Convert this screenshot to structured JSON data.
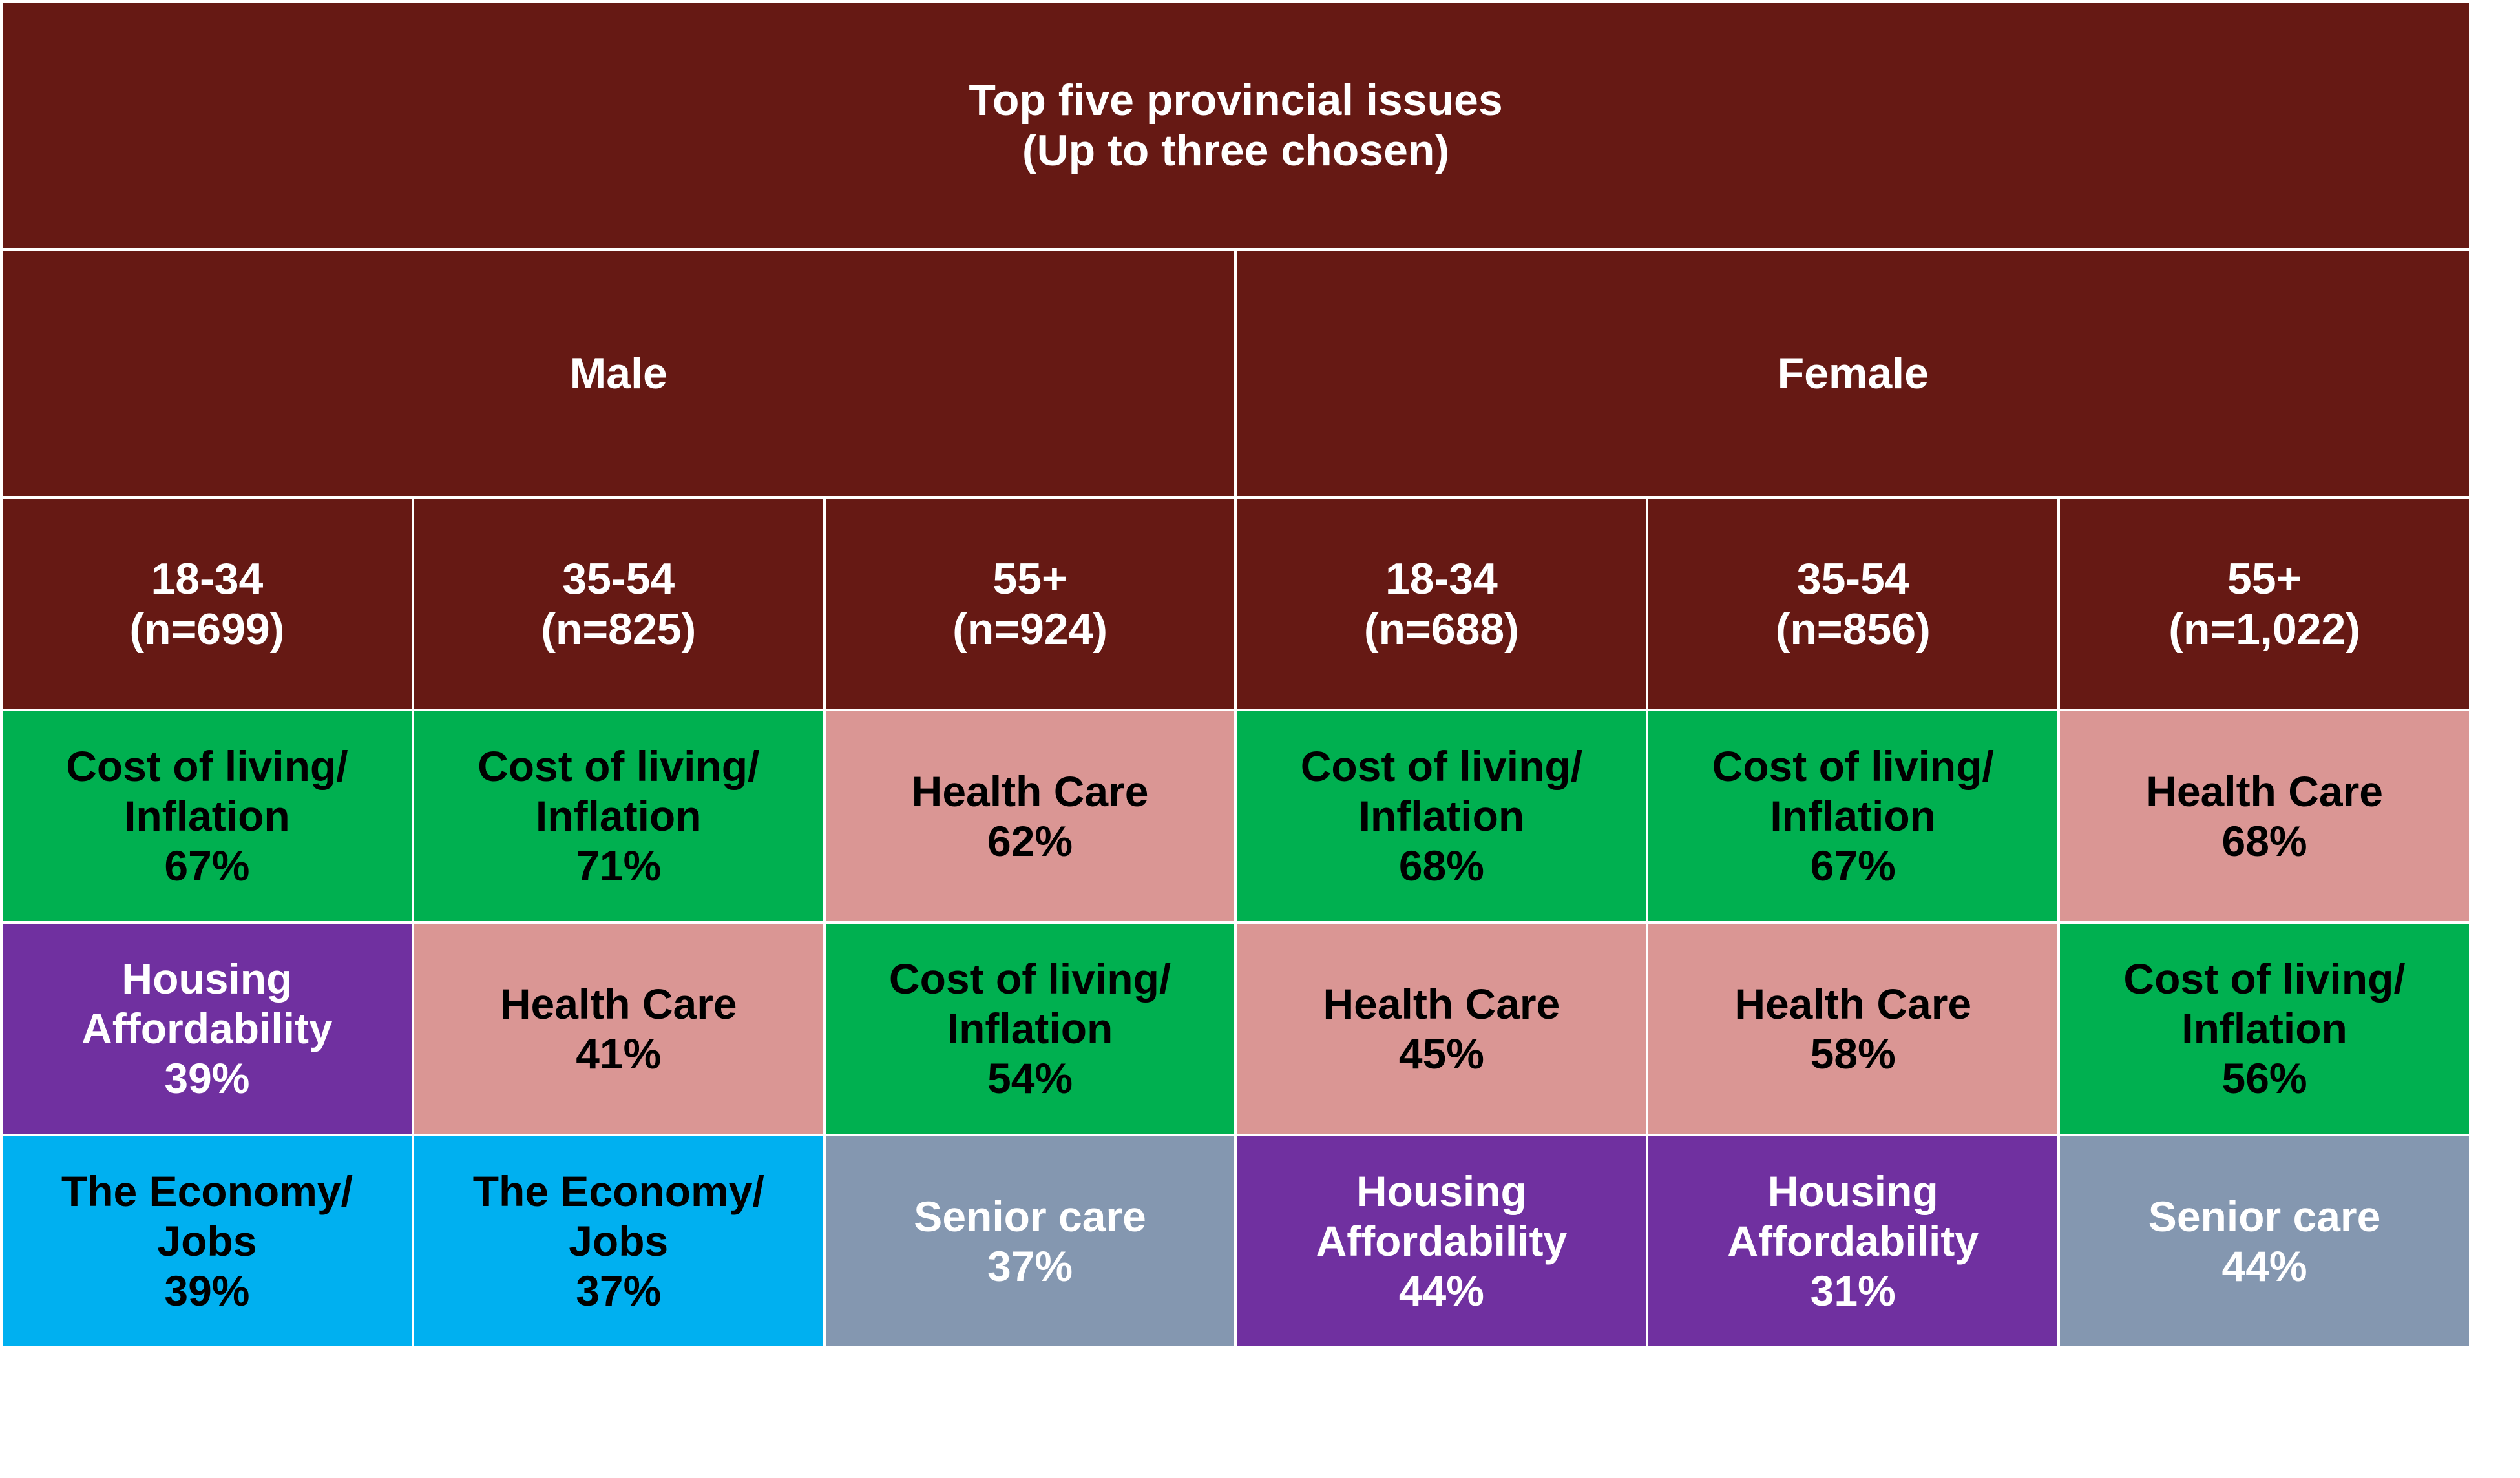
{
  "chart_data": {
    "type": "table",
    "title": "Top five provincial issues",
    "subtitle": "(Up to three chosen)",
    "genders": [
      "Male",
      "Female"
    ],
    "groups": [
      {
        "gender": "Male",
        "age": "18-34",
        "n": "(n=699)"
      },
      {
        "gender": "Male",
        "age": "35-54",
        "n": "(n=825)"
      },
      {
        "gender": "Male",
        "age": "55+",
        "n": "(n=924)"
      },
      {
        "gender": "Female",
        "age": "18-34",
        "n": "(n=688)"
      },
      {
        "gender": "Female",
        "age": "35-54",
        "n": "(n=856)"
      },
      {
        "gender": "Female",
        "age": "55+",
        "n": "(n=1,022)"
      }
    ],
    "issue_colors": {
      "cost": {
        "bg": "#00B050",
        "fg": "#000000"
      },
      "health": {
        "bg": "#DA9694",
        "fg": "#000000"
      },
      "housing": {
        "bg": "#7030A0",
        "fg": "#ffffff"
      },
      "economy": {
        "bg": "#00B0F0",
        "fg": "#000000"
      },
      "senior": {
        "bg": "#8497B0",
        "fg": "#ffffff"
      }
    },
    "rows": [
      [
        {
          "key": "cost",
          "label": [
            "Cost of living/",
            "Inflation"
          ],
          "value": "67%"
        },
        {
          "key": "cost",
          "label": [
            "Cost of living/",
            "Inflation"
          ],
          "value": "71%"
        },
        {
          "key": "health",
          "label": [
            "Health Care"
          ],
          "value": "62%"
        },
        {
          "key": "cost",
          "label": [
            "Cost of living/",
            "Inflation"
          ],
          "value": "68%"
        },
        {
          "key": "cost",
          "label": [
            "Cost of living/",
            "Inflation"
          ],
          "value": "67%"
        },
        {
          "key": "health",
          "label": [
            "Health Care"
          ],
          "value": "68%"
        }
      ],
      [
        {
          "key": "housing",
          "label": [
            "Housing",
            "Affordability"
          ],
          "value": "39%"
        },
        {
          "key": "health",
          "label": [
            "Health Care"
          ],
          "value": "41%"
        },
        {
          "key": "cost",
          "label": [
            "Cost of living/",
            "Inflation"
          ],
          "value": "54%"
        },
        {
          "key": "health",
          "label": [
            "Health Care"
          ],
          "value": "45%"
        },
        {
          "key": "health",
          "label": [
            "Health Care"
          ],
          "value": "58%"
        },
        {
          "key": "cost",
          "label": [
            "Cost of living/",
            "Inflation"
          ],
          "value": "56%"
        }
      ],
      [
        {
          "key": "economy",
          "label": [
            "The Economy/",
            "Jobs"
          ],
          "value": "39%"
        },
        {
          "key": "economy",
          "label": [
            "The Economy/",
            "Jobs"
          ],
          "value": "37%"
        },
        {
          "key": "senior",
          "label": [
            "Senior care"
          ],
          "value": "37%"
        },
        {
          "key": "housing",
          "label": [
            "Housing",
            "Affordability"
          ],
          "value": "44%"
        },
        {
          "key": "housing",
          "label": [
            "Housing",
            "Affordability"
          ],
          "value": "31%"
        },
        {
          "key": "senior",
          "label": [
            "Senior care"
          ],
          "value": "44%"
        }
      ]
    ]
  }
}
